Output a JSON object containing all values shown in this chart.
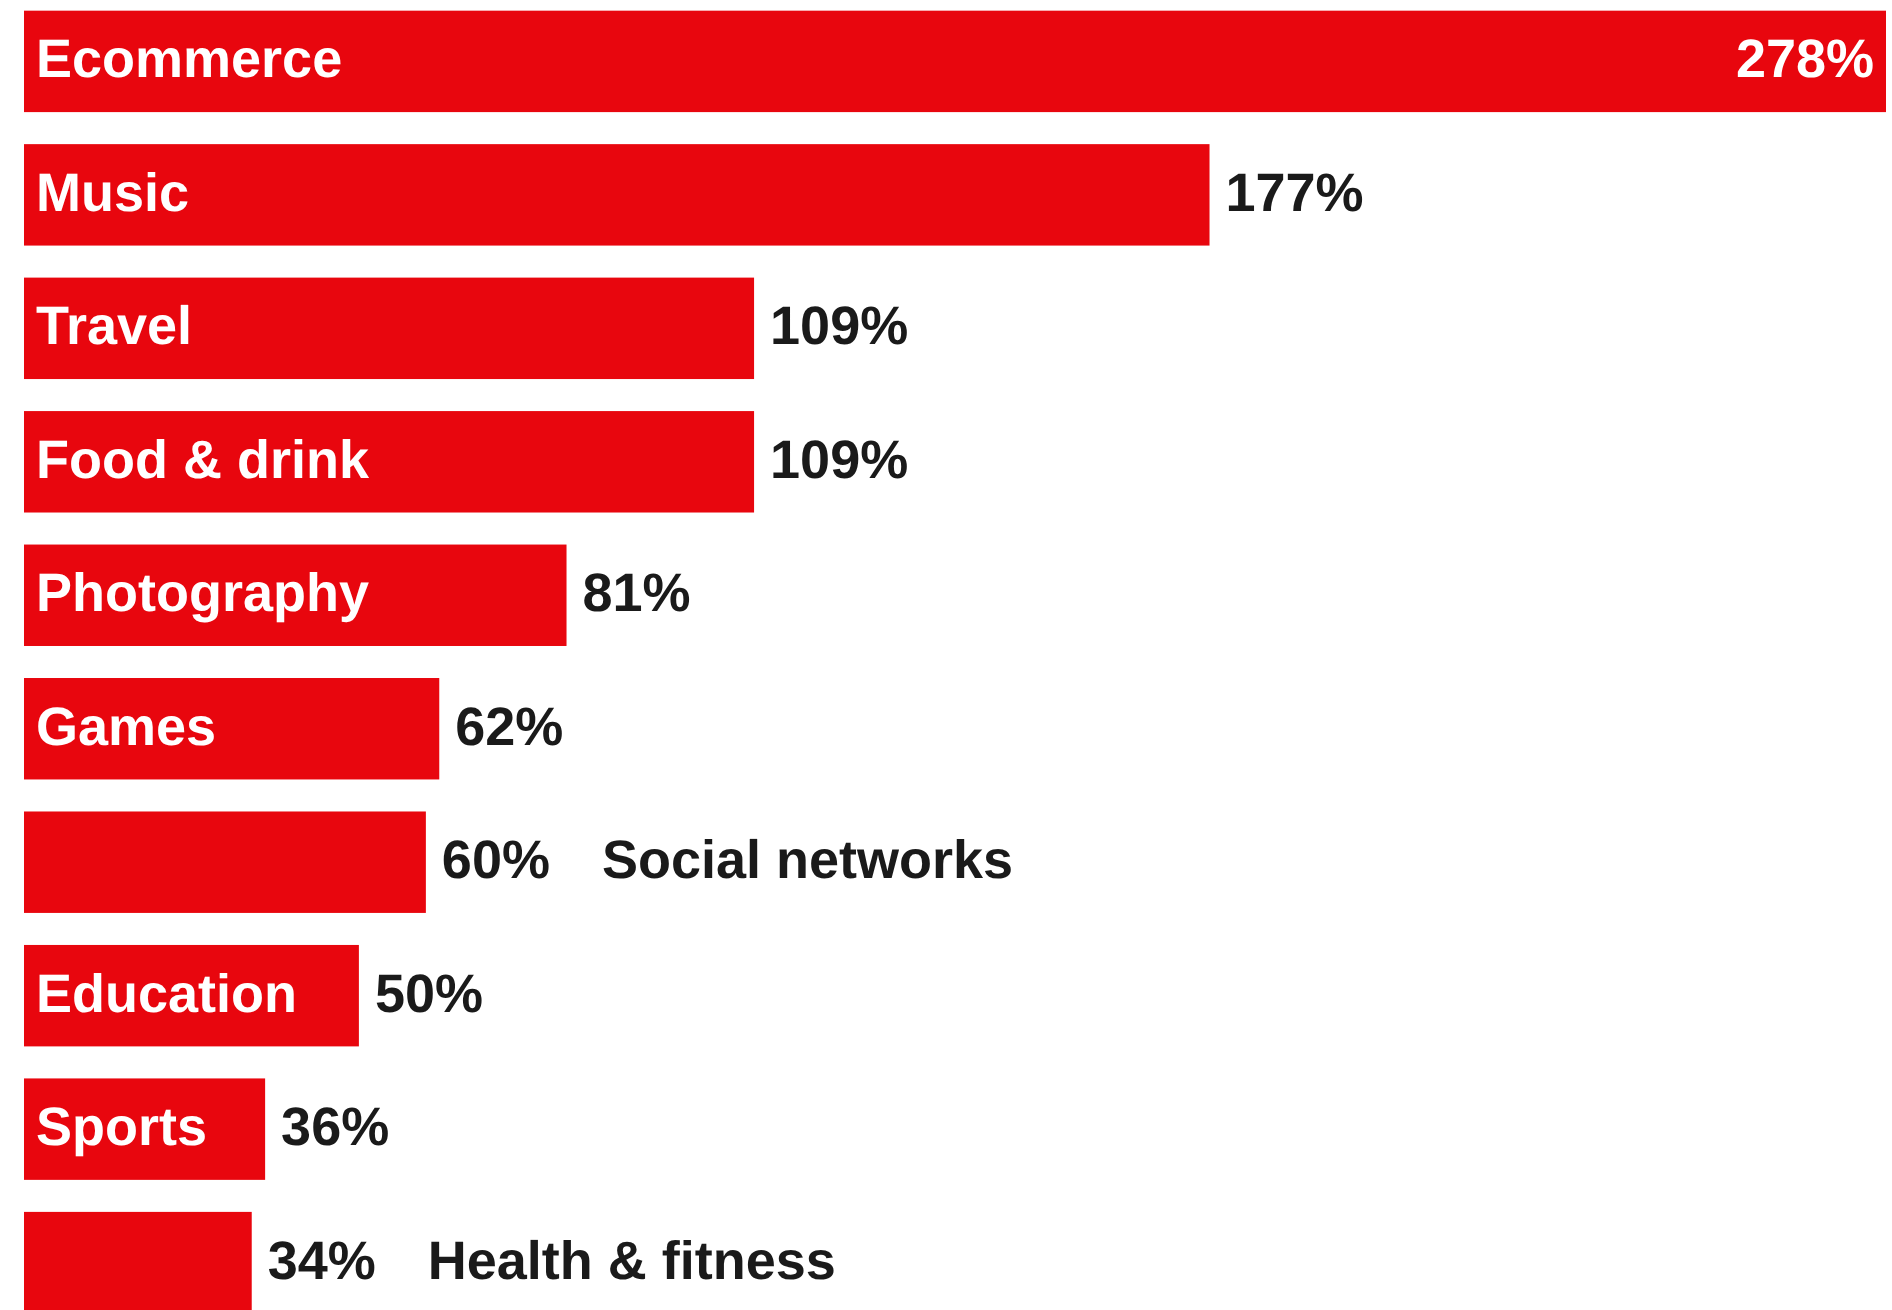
{
  "chart_data": {
    "type": "bar",
    "orientation": "horizontal",
    "categories": [
      "Ecommerce",
      "Music",
      "Travel",
      "Food & drink",
      "Photography",
      "Games",
      "Social networks",
      "Education",
      "Sports",
      "Health & fitness"
    ],
    "values": [
      278,
      177,
      109,
      109,
      81,
      62,
      60,
      50,
      36,
      34
    ],
    "value_labels": [
      "278%",
      "177%",
      "109%",
      "109%",
      "81%",
      "62%",
      "60%",
      "50%",
      "36%",
      "34%"
    ],
    "color": "#e8060e"
  }
}
